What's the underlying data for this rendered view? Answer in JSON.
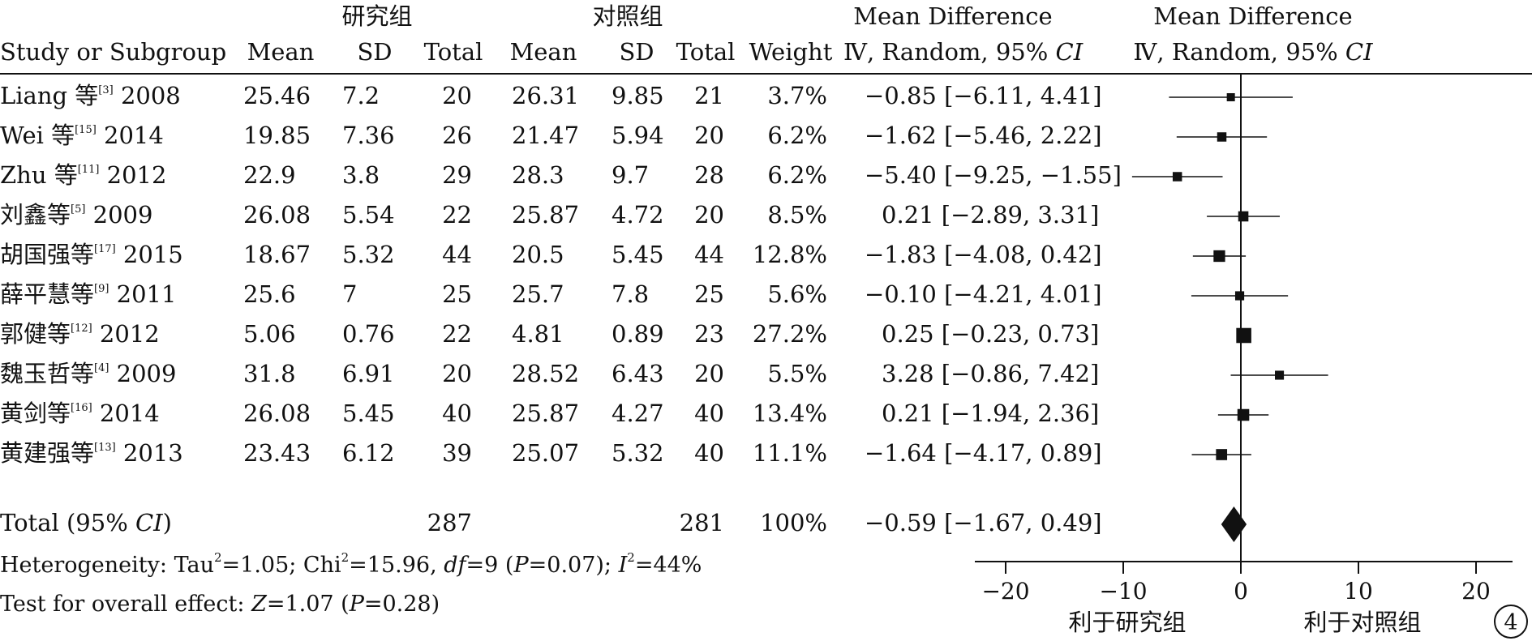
{
  "groups": {
    "left": "研究组",
    "right": "对照组"
  },
  "columns": {
    "study": "Study or Subgroup",
    "mean": "Mean",
    "sd": "SD",
    "total": "Total",
    "weight": "Weight",
    "md_title": "Mean Difference",
    "md_sub": "Ⅳ, Random, 95% ",
    "ci": "CI"
  },
  "studies": [
    {
      "label": "Liang 等",
      "ref": "[3]",
      "year": "2008",
      "m1": "25.46",
      "sd1": "7.2",
      "n1": "20",
      "m2": "26.31",
      "sd2": "9.85",
      "n2": "21",
      "weight": "3.7%",
      "md": "−0.85 [−6.11, 4.41]"
    },
    {
      "label": "Wei 等",
      "ref": "[15]",
      "year": "2014",
      "m1": "19.85",
      "sd1": "7.36",
      "n1": "26",
      "m2": "21.47",
      "sd2": "5.94",
      "n2": "20",
      "weight": "6.2%",
      "md": "−1.62 [−5.46, 2.22]"
    },
    {
      "label": "Zhu 等",
      "ref": "[11]",
      "year": "2012",
      "m1": "22.9",
      "sd1": "3.8",
      "n1": "29",
      "m2": "28.3",
      "sd2": "9.7",
      "n2": "28",
      "weight": "6.2%",
      "md": "−5.40 [−9.25, −1.55]"
    },
    {
      "label": "刘鑫等",
      "ref": "[5]",
      "year": "2009",
      "m1": "26.08",
      "sd1": "5.54",
      "n1": "22",
      "m2": "25.87",
      "sd2": "4.72",
      "n2": "20",
      "weight": "8.5%",
      "md": "0.21 [−2.89, 3.31]"
    },
    {
      "label": "胡国强等",
      "ref": "[17]",
      "year": "2015",
      "m1": "18.67",
      "sd1": "5.32",
      "n1": "44",
      "m2": "20.5",
      "sd2": "5.45",
      "n2": "44",
      "weight": "12.8%",
      "md": "−1.83 [−4.08, 0.42]"
    },
    {
      "label": "薛平慧等",
      "ref": "[9]",
      "year": "2011",
      "m1": "25.6",
      "sd1": "7",
      "n1": "25",
      "m2": "25.7",
      "sd2": "7.8",
      "n2": "25",
      "weight": "5.6%",
      "md": "−0.10 [−4.21, 4.01]"
    },
    {
      "label": "郭健等",
      "ref": "[12]",
      "year": "2012",
      "m1": "5.06",
      "sd1": "0.76",
      "n1": "22",
      "m2": "4.81",
      "sd2": "0.89",
      "n2": "23",
      "weight": "27.2%",
      "md": "0.25 [−0.23, 0.73]"
    },
    {
      "label": "魏玉哲等",
      "ref": "[4]",
      "year": "2009",
      "m1": "31.8",
      "sd1": "6.91",
      "n1": "20",
      "m2": "28.52",
      "sd2": "6.43",
      "n2": "20",
      "weight": "5.5%",
      "md": "3.28 [−0.86, 7.42]"
    },
    {
      "label": "黄剑等",
      "ref": "[16]",
      "year": "2014",
      "m1": "26.08",
      "sd1": "5.45",
      "n1": "40",
      "m2": "25.87",
      "sd2": "4.27",
      "n2": "40",
      "weight": "13.4%",
      "md": "0.21 [−1.94, 2.36]"
    },
    {
      "label": "黄建强等",
      "ref": "[13]",
      "year": "2013",
      "m1": "23.43",
      "sd1": "6.12",
      "n1": "39",
      "m2": "25.07",
      "sd2": "5.32",
      "n2": "40",
      "weight": "11.1%",
      "md": "−1.64 [−4.17, 0.89]"
    }
  ],
  "total": {
    "label_pre": "Total (95% ",
    "label_ci": "CI",
    "label_post": ")",
    "n1": "287",
    "n2": "281",
    "weight": "100%",
    "md": "−0.59 [−1.67, 0.49]"
  },
  "heterogeneity": {
    "prefix": "Heterogeneity: Tau",
    "tau_sup": "2",
    "tau_val": "=1.05; Chi",
    "chi_sup": "2",
    "chi_val": "=15.96, ",
    "df": "df",
    "df_val": "=9 (",
    "p": "P",
    "p_val": "=0.07); ",
    "i": "I",
    "i_sup": "2",
    "i_val": "=44%"
  },
  "overall": {
    "prefix": "Test for overall effect: ",
    "z": "Z",
    "z_val": "=1.07 (",
    "p": "P",
    "p_val": "=0.28)"
  },
  "favours": {
    "left": "利于研究组",
    "right": "利于对照组"
  },
  "figure_number": "4",
  "chart_data": {
    "type": "scatter",
    "title": "",
    "xlabel": "",
    "ylabel": "",
    "xlim": [
      -22.5,
      22.5
    ],
    "xticks": [
      -20,
      -10,
      0,
      10,
      20
    ],
    "xtick_labels": [
      "−20",
      "−10",
      "0",
      "10",
      "20"
    ],
    "grid": false,
    "categories": [
      "Liang 等 2008",
      "Wei 等 2014",
      "Zhu 等 2012",
      "刘鑫等 2009",
      "胡国强等 2015",
      "薛平慧等 2011",
      "郭健等 2012",
      "魏玉哲等 2009",
      "黄剑等 2014",
      "黄建强等 2013"
    ],
    "estimate": [
      -0.85,
      -1.62,
      -5.4,
      0.21,
      -1.83,
      -0.1,
      0.25,
      3.28,
      0.21,
      -1.64
    ],
    "ci_low": [
      -6.11,
      -5.46,
      -9.25,
      -2.89,
      -4.08,
      -4.21,
      -0.23,
      -0.86,
      -1.94,
      -4.17
    ],
    "ci_high": [
      4.41,
      2.22,
      -1.55,
      3.31,
      0.42,
      4.01,
      0.73,
      7.42,
      2.36,
      0.89
    ],
    "weight": [
      3.7,
      6.2,
      6.2,
      8.5,
      12.8,
      5.6,
      27.2,
      5.5,
      13.4,
      11.1
    ],
    "pooled": {
      "estimate": -0.59,
      "ci_low": -1.67,
      "ci_high": 0.49
    }
  }
}
